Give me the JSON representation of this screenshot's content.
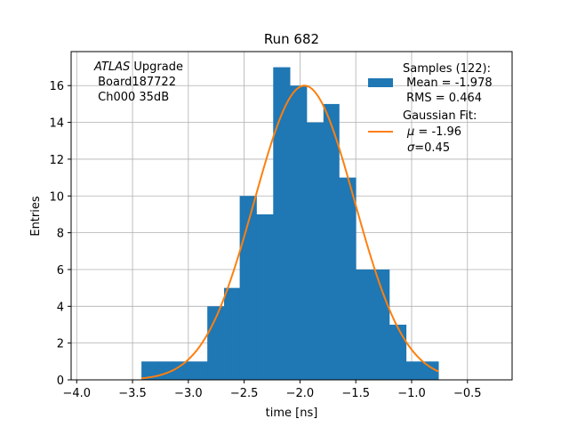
{
  "chart_data": {
    "type": "bar",
    "title": "Run 682",
    "xlabel": "time [ns]",
    "ylabel": "Entries",
    "xlim": [
      -4.05,
      -0.1
    ],
    "ylim": [
      0,
      17.85
    ],
    "grid": true,
    "legend_position": "top-right",
    "x_ticks": [
      -4.0,
      -3.5,
      -3.0,
      -2.5,
      -2.0,
      -1.5,
      -1.0,
      -0.5
    ],
    "x_tick_labels": [
      "−4.0",
      "−3.5",
      "−3.0",
      "−2.5",
      "−2.0",
      "−1.5",
      "−1.0",
      "−0.5"
    ],
    "y_ticks": [
      0,
      2,
      4,
      6,
      8,
      10,
      12,
      14,
      16
    ],
    "y_tick_labels": [
      "0",
      "2",
      "4",
      "6",
      "8",
      "10",
      "12",
      "14",
      "16"
    ],
    "histogram": {
      "color": "#1f77b4",
      "bin_edges": [
        -3.42,
        -3.27,
        -3.13,
        -2.98,
        -2.83,
        -2.68,
        -2.54,
        -2.39,
        -2.24,
        -2.09,
        -1.94,
        -1.79,
        -1.65,
        -1.5,
        -1.35,
        -1.2,
        -1.05,
        -0.91,
        -0.76
      ],
      "values": [
        1,
        1,
        1,
        1,
        4,
        5,
        10,
        9,
        17,
        16,
        14,
        15,
        11,
        6,
        6,
        3,
        1,
        1
      ]
    },
    "fit_curve": {
      "color": "#ff7f0e",
      "mu": -1.96,
      "sigma": 0.45,
      "amplitude": 16.0,
      "x_range": [
        -3.42,
        -0.76
      ]
    },
    "legend": {
      "samples_label": "Samples (122):",
      "mean_label": " Mean = -1.978",
      "rms_label": " RMS = 0.464",
      "fit_label": "Gaussian Fit:",
      "mu_symbol": "μ",
      "mu_label": " = -1.96",
      "sigma_symbol": "σ",
      "sigma_label": "=0.45"
    },
    "annotation": {
      "atlas_label": "ATLAS",
      "upgrade_label": " Upgrade",
      "board_label": " Board187722",
      "channel_label": " Ch000 35dB"
    }
  }
}
